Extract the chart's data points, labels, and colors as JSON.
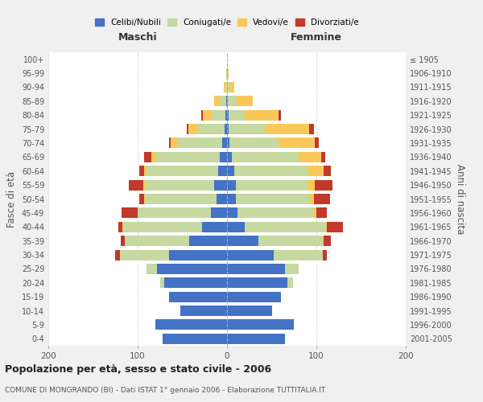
{
  "age_groups": [
    "0-4",
    "5-9",
    "10-14",
    "15-19",
    "20-24",
    "25-29",
    "30-34",
    "35-39",
    "40-44",
    "45-49",
    "50-54",
    "55-59",
    "60-64",
    "65-69",
    "70-74",
    "75-79",
    "80-84",
    "85-89",
    "90-94",
    "95-99",
    "100+"
  ],
  "birth_years": [
    "2001-2005",
    "1996-2000",
    "1991-1995",
    "1986-1990",
    "1981-1985",
    "1976-1980",
    "1971-1975",
    "1966-1970",
    "1961-1965",
    "1956-1960",
    "1951-1955",
    "1946-1950",
    "1941-1945",
    "1936-1940",
    "1931-1935",
    "1926-1930",
    "1921-1925",
    "1916-1920",
    "1911-1915",
    "1906-1910",
    "≤ 1905"
  ],
  "maschi": {
    "celibi": [
      72,
      80,
      52,
      65,
      70,
      78,
      65,
      42,
      28,
      18,
      12,
      14,
      10,
      8,
      5,
      3,
      2,
      1,
      0,
      0,
      0
    ],
    "coniugati": [
      0,
      0,
      0,
      0,
      5,
      12,
      55,
      72,
      88,
      82,
      80,
      78,
      80,
      72,
      50,
      30,
      15,
      8,
      2,
      1,
      0
    ],
    "vedovi": [
      0,
      0,
      0,
      0,
      0,
      0,
      0,
      0,
      1,
      0,
      1,
      2,
      3,
      5,
      8,
      10,
      10,
      5,
      2,
      0,
      0
    ],
    "divorziati": [
      0,
      0,
      0,
      0,
      0,
      0,
      5,
      5,
      5,
      18,
      5,
      16,
      5,
      8,
      2,
      2,
      2,
      0,
      0,
      0,
      0
    ]
  },
  "femmine": {
    "nubili": [
      65,
      75,
      50,
      60,
      68,
      65,
      52,
      35,
      20,
      12,
      10,
      10,
      8,
      5,
      3,
      2,
      2,
      1,
      0,
      0,
      0
    ],
    "coniugate": [
      0,
      0,
      0,
      0,
      6,
      15,
      55,
      72,
      90,
      85,
      82,
      80,
      82,
      75,
      55,
      40,
      18,
      10,
      3,
      1,
      0
    ],
    "vedove": [
      0,
      0,
      0,
      0,
      0,
      0,
      0,
      1,
      2,
      3,
      5,
      8,
      18,
      25,
      40,
      50,
      38,
      18,
      5,
      1,
      0
    ],
    "divorziate": [
      0,
      0,
      0,
      0,
      0,
      0,
      5,
      8,
      18,
      12,
      18,
      20,
      8,
      5,
      5,
      5,
      2,
      0,
      0,
      0,
      0
    ]
  },
  "colors": {
    "celibi": "#4472C4",
    "coniugati": "#C5D9A0",
    "vedovi": "#FAC858",
    "divorziati": "#C0392B"
  },
  "xlim": 200,
  "title": "Popolazione per età, sesso e stato civile - 2006",
  "subtitle": "COMUNE DI MONGRANDO (BI) - Dati ISTAT 1° gennaio 2006 - Elaborazione TUTTITALIA.IT",
  "ylabel": "Fasce di età",
  "ylabel_right": "Anni di nascita",
  "maschi_label": "Maschi",
  "femmine_label": "Femmine",
  "bg_color": "#f0f0f0",
  "plot_bg": "#ffffff",
  "legend_labels": [
    "Celibi/Nubili",
    "Coniugati/e",
    "Vedovi/e",
    "Divorziati/e"
  ]
}
